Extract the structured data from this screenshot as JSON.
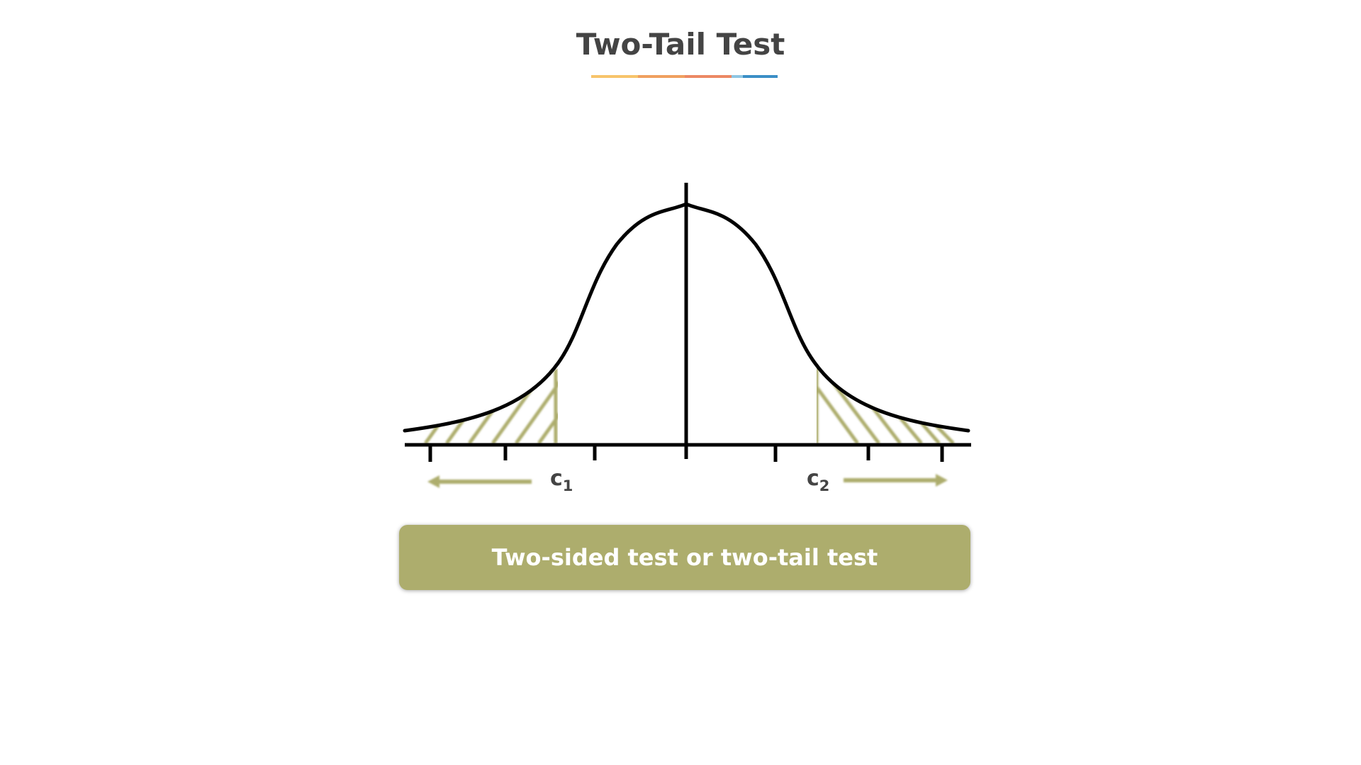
{
  "title": "Two-Tail Test",
  "colors": {
    "accent": "#adad6d",
    "title_text": "#444444",
    "curve": "#000000",
    "underline": [
      "#f7c46b",
      "#f0a05f",
      "#ec8864",
      "#8fc6e3",
      "#3b8fc6"
    ]
  },
  "labels": {
    "c1": "c",
    "c1_sub": "1",
    "c2": "c",
    "c2_sub": "2"
  },
  "caption": "Two-sided test or two-tail test"
}
